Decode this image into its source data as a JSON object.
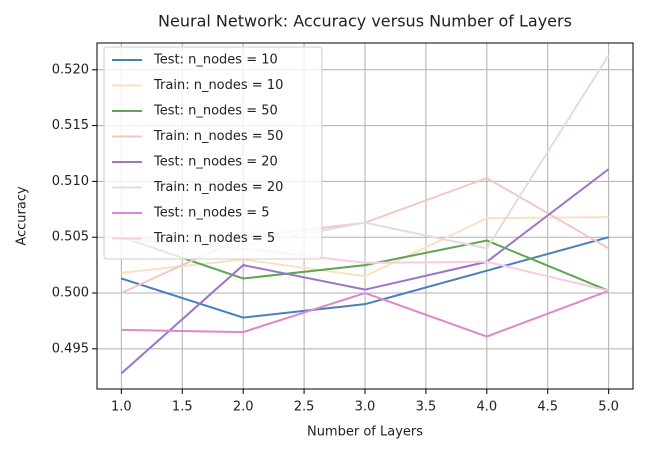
{
  "chart_data": {
    "type": "line",
    "title": "Neural Network: Accuracy versus Number of Layers",
    "xlabel": "Number of Layers",
    "ylabel": "Accuracy",
    "x": [
      1,
      2,
      3,
      4,
      5
    ],
    "series": [
      {
        "name": "Test: n_nodes = 10",
        "color": "#4a7fb8",
        "values": [
          0.5013,
          0.4978,
          0.499,
          0.502,
          0.505
        ]
      },
      {
        "name": "Train: n_nodes = 10",
        "color": "#fde0c4",
        "values": [
          0.5018,
          0.503,
          0.5015,
          0.5067,
          0.5068
        ]
      },
      {
        "name": "Test: n_nodes = 50",
        "color": "#5ea64f",
        "values": [
          0.505,
          0.5013,
          0.5025,
          0.5047,
          0.5002
        ]
      },
      {
        "name": "Train: n_nodes = 50",
        "color": "#f2c8c2",
        "values": [
          0.5,
          0.505,
          0.5063,
          0.5103,
          0.504
        ]
      },
      {
        "name": "Test: n_nodes = 20",
        "color": "#9d74c8",
        "values": [
          0.4928,
          0.5025,
          0.5003,
          0.5028,
          0.5111
        ]
      },
      {
        "name": "Train: n_nodes = 20",
        "color": "#e6dadd",
        "values": [
          0.505,
          0.5043,
          0.5063,
          0.504,
          0.5213
        ]
      },
      {
        "name": "Test: n_nodes = 5",
        "color": "#dc88cc",
        "values": [
          0.4967,
          0.4965,
          0.5,
          0.4961,
          0.5002
        ]
      },
      {
        "name": "Train: n_nodes = 5",
        "color": "#f7cde6",
        "values": [
          0.5048,
          0.504,
          0.5027,
          0.5028,
          0.5002
        ]
      }
    ],
    "xlim": [
      0.8,
      5.2
    ],
    "xticks": [
      {
        "value": 1,
        "label": "1.0"
      },
      1.5,
      {
        "value": 2,
        "label": "2.0"
      },
      2.5,
      {
        "value": 3,
        "label": "3.0"
      },
      3.5,
      {
        "value": 4,
        "label": "4.0"
      },
      4.5,
      {
        "value": 5,
        "label": "5.0"
      }
    ],
    "ylim": [
      0.4914,
      0.5224
    ],
    "yticks": [
      0.495,
      {
        "value": 0.5,
        "label": "0.500"
      },
      0.505,
      {
        "value": 0.51,
        "label": "0.510"
      },
      0.515,
      {
        "value": 0.52,
        "label": "0.520"
      }
    ],
    "grid": true,
    "legend": "upper left"
  }
}
